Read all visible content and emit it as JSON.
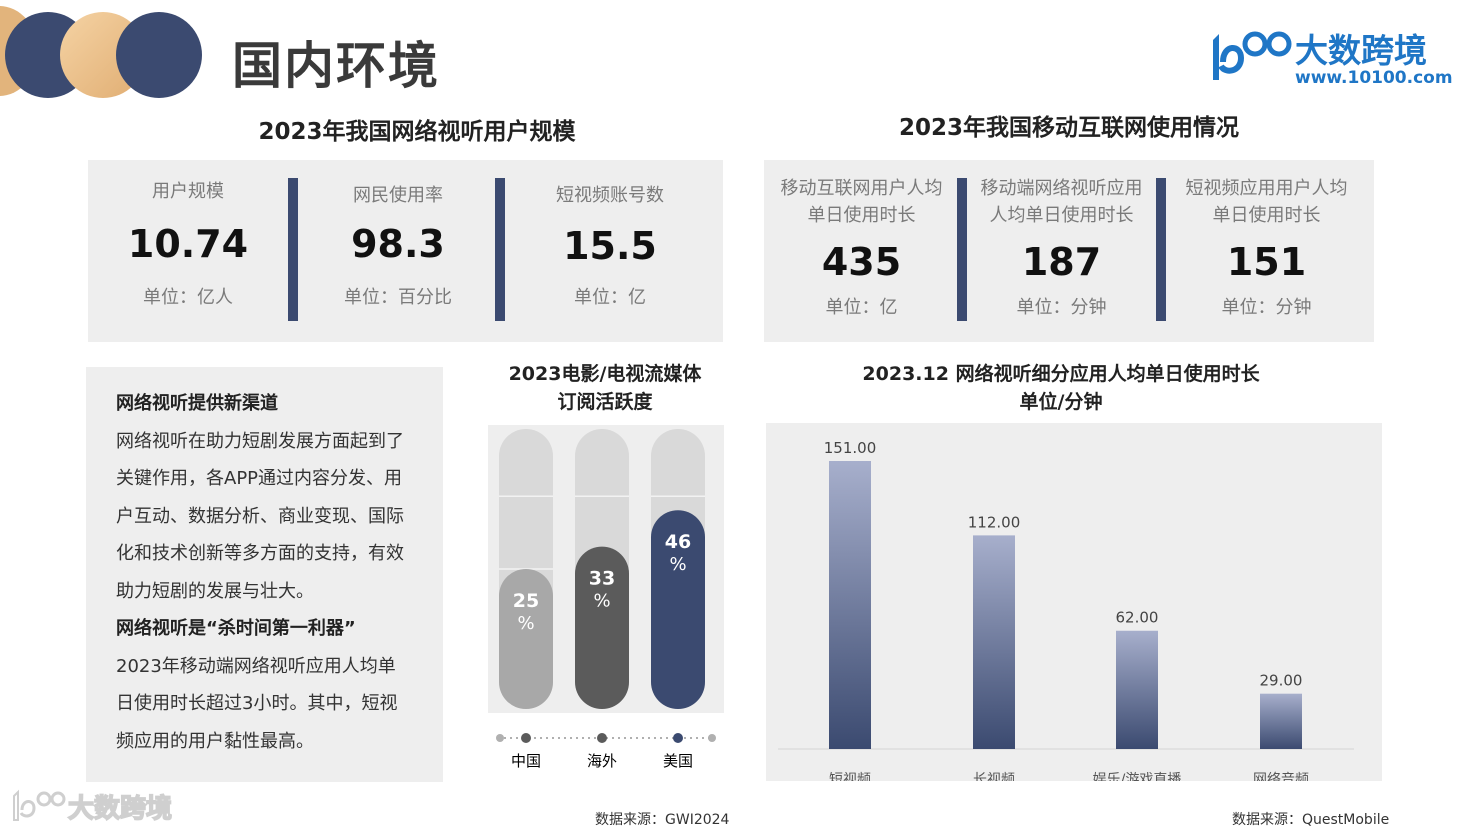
{
  "header": {
    "title": "国内环境",
    "logo_name": "大数跨境",
    "logo_url": "www.10100.com",
    "logo_mark": "100"
  },
  "left_stats": {
    "title": "2023年我国网络视听用户规模",
    "items": [
      {
        "label": "用户规模",
        "value": "10.74",
        "unit": "单位：亿人"
      },
      {
        "label": "网民使用率",
        "value": "98.3",
        "unit": "单位：百分比"
      },
      {
        "label": "短视频账号数",
        "value": "15.5",
        "unit": "单位：亿"
      }
    ]
  },
  "right_stats": {
    "title": "2023年我国移动互联网使用情况",
    "items": [
      {
        "label1": "移动互联网用户人均",
        "label2": "单日使用时长",
        "value": "435",
        "unit": "单位：亿"
      },
      {
        "label1": "移动端网络视听应用",
        "label2": "人均单日使用时长",
        "value": "187",
        "unit": "单位：分钟"
      },
      {
        "label1": "短视频应用用户人均",
        "label2": "单日使用时长",
        "value": "151",
        "unit": "单位：分钟"
      }
    ]
  },
  "text_panel": {
    "heading1": "网络视听提供新渠道",
    "lines1": [
      "网络视听在助力短剧发展方面起到了",
      "关键作用，各APP通过内容分发、用",
      "户互动、数据分析、商业变现、国际",
      "化和技术创新等多方面的支持，有效",
      "助力短剧的发展与壮大。"
    ],
    "heading2": "网络视听是“杀时间第一利器”",
    "lines2": [
      "2023年移动端网络视听应用人均单",
      "日使用时长超过3小时。其中，短视",
      "频应用的用户黏性最高。"
    ]
  },
  "chart_data": [
    {
      "type": "bar",
      "title": "2023电影/电视流媒体\n订阅活跃度",
      "title_lines": [
        "2023电影/电视流媒体",
        "订阅活跃度"
      ],
      "categories": [
        "中国",
        "海外",
        "美国"
      ],
      "values": [
        25,
        33,
        46
      ],
      "value_labels": [
        "25",
        "33",
        "46"
      ],
      "unit": "%",
      "ylim": [
        0,
        100
      ],
      "colors": [
        "#a8a8a8",
        "#5b5b5b",
        "#3b4a70"
      ],
      "source": "数据来源：GWI2024"
    },
    {
      "type": "bar",
      "title": "2023.12 网络视听细分应用人均单日使用时长\n单位/分钟",
      "title_lines": [
        "2023.12 网络视听细分应用人均单日使用时长",
        "单位/分钟"
      ],
      "categories": [
        "短视频",
        "长视频",
        "娱乐/游戏直播",
        "网络音频"
      ],
      "values": [
        151.0,
        112.0,
        62.0,
        29.0
      ],
      "value_labels": [
        "151.00",
        "112.00",
        "62.00",
        "29.00"
      ],
      "ylim": [
        0,
        160
      ],
      "grid": false,
      "source": "数据来源：QuestMobile"
    }
  ],
  "footer_logo": "大数跨境",
  "colors": {
    "navy": "#3b4a70",
    "panel": "#eeeeee",
    "brand": "#1f76c6"
  }
}
